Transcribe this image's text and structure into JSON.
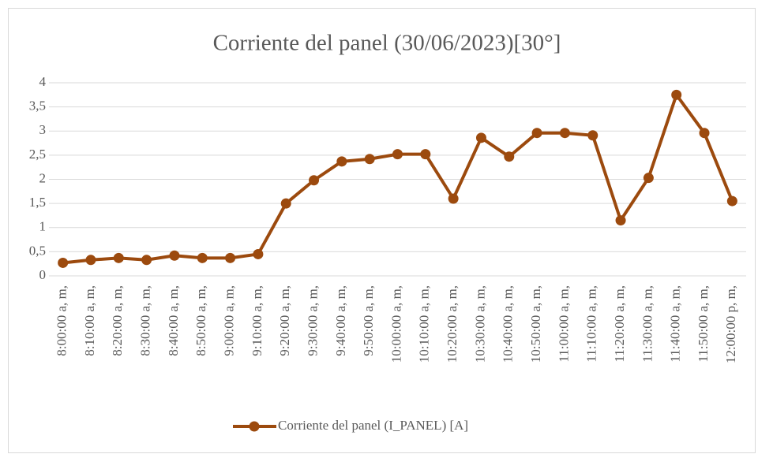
{
  "chart_data": {
    "type": "line",
    "title": "Corriente del panel (30/06/2023)[30°]",
    "categories": [
      "8:00:00 a, m,",
      "8:10:00 a, m,",
      "8:20:00 a, m,",
      "8:30:00 a, m,",
      "8:40:00 a, m,",
      "8:50:00 a, m,",
      "9:00:00 a, m,",
      "9:10:00 a, m,",
      "9:20:00 a, m,",
      "9:30:00 a, m,",
      "9:40:00 a, m,",
      "9:50:00 a, m,",
      "10:00:00 a, m,",
      "10:10:00 a, m,",
      "10:20:00 a, m,",
      "10:30:00 a, m,",
      "10:40:00 a, m,",
      "10:50:00 a, m,",
      "11:00:00 a, m,",
      "11:10:00 a, m,",
      "11:20:00 a, m,",
      "11:30:00 a, m,",
      "11:40:00 a, m,",
      "11:50:00 a, m,",
      "12:00:00 p, m,"
    ],
    "series": [
      {
        "name": "Corriente del panel (I_PANEL) [A]",
        "color": "#9c4a0e",
        "values": [
          0.27,
          0.33,
          0.37,
          0.33,
          0.42,
          0.37,
          0.37,
          0.45,
          1.5,
          1.98,
          2.37,
          2.42,
          2.52,
          2.52,
          1.6,
          2.86,
          2.47,
          2.96,
          2.96,
          2.91,
          1.15,
          2.03,
          3.75,
          2.96,
          1.55
        ]
      }
    ],
    "ylim": [
      0,
      4
    ],
    "yticks": [
      0,
      {
        "value": 0.5,
        "label": "0,5"
      },
      1,
      {
        "value": 1.5,
        "label": "1,5"
      },
      2,
      {
        "value": 2.5,
        "label": "2,5"
      },
      3,
      {
        "value": 3.5,
        "label": "3,5"
      },
      4
    ],
    "grid": true,
    "legend": "bottom"
  }
}
